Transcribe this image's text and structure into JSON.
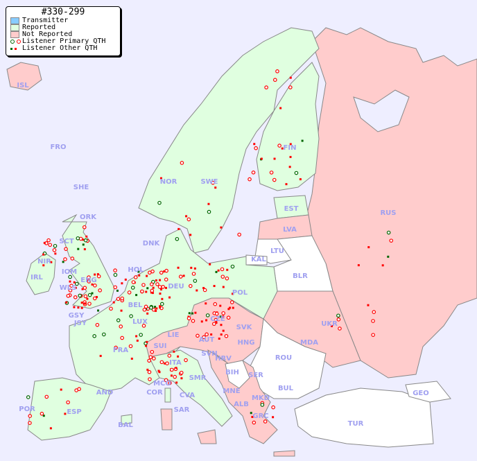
{
  "legend": {
    "title": "#330-299",
    "items": [
      {
        "label": "Transmitter",
        "color": "#88ccff"
      },
      {
        "label": "Reported",
        "color": "#e0ffe0"
      },
      {
        "label": "Not Reported",
        "color": "#ffcccc"
      },
      {
        "label": "Listener Primary QTH",
        "symbol": "circle",
        "colors": [
          "#006600",
          "#ff0000"
        ]
      },
      {
        "label": "Listener Other QTH",
        "symbol": "square",
        "colors": [
          "#006600",
          "#ff0000"
        ]
      }
    ]
  },
  "colors": {
    "sea": "#eeeeff",
    "reported": "#e0ffe0",
    "not_reported": "#ffcccc",
    "other": "#ffffff",
    "label": "#a0a0f0",
    "border": "#888888"
  },
  "countries": [
    "ISL",
    "FRO",
    "SHE",
    "ORK",
    "SCT",
    "NIR",
    "IRL",
    "IOM",
    "WLS",
    "ENG",
    "GSY",
    "JSY",
    "NOR",
    "SWE",
    "FIN",
    "EST",
    "LVA",
    "LTU",
    "KAL",
    "RUS",
    "BLR",
    "DNK",
    "HOL",
    "BEL",
    "LUX",
    "DEU",
    "POL",
    "CZE",
    "SVK",
    "AUT",
    "HNG",
    "SUI",
    "LIE",
    "FRA",
    "UKR",
    "MDA",
    "ROU",
    "SVN",
    "HRV",
    "BIH",
    "SER",
    "MNE",
    "ALB",
    "MKD",
    "BUL",
    "GRC",
    "TUR",
    "GEO",
    "ITA",
    "SMR",
    "MCO",
    "COR",
    "CVA",
    "SAR",
    "AND",
    "ESP",
    "POR",
    "BAL"
  ]
}
